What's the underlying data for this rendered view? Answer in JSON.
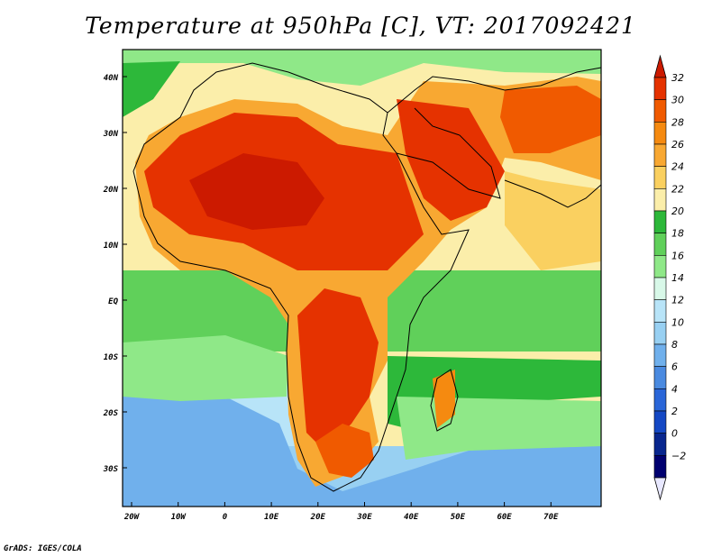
{
  "map": {
    "title": "Temperature at 950hPa [C], VT: 2017092421",
    "credit": "GrADS: IGES/COLA",
    "lat_labels": [
      "40N",
      "30N",
      "20N",
      "10N",
      "EQ",
      "10S",
      "20S",
      "30S"
    ],
    "lon_labels": [
      "20W",
      "10W",
      "0",
      "10E",
      "20E",
      "30E",
      "40E",
      "50E",
      "60E",
      "70E"
    ],
    "extent": {
      "lon_min": -22,
      "lon_max": 80,
      "lat_min": -37,
      "lat_max": 46
    }
  },
  "colorbar": {
    "labels": [
      "32",
      "30",
      "28",
      "26",
      "24",
      "22",
      "20",
      "18",
      "16",
      "14",
      "12",
      "10",
      "8",
      "6",
      "4",
      "2",
      "0",
      "−2"
    ],
    "colors": [
      "#cc1a00",
      "#e53200",
      "#f05a00",
      "#f58a10",
      "#f8a832",
      "#fad060",
      "#fbeeaa",
      "#2db83a",
      "#60d05a",
      "#8fe888",
      "#d8f8e8",
      "#b8e4f8",
      "#98d0f2",
      "#70b0ec",
      "#4a8ae0",
      "#2a66d8",
      "#1448c4",
      "#08268e",
      "#000070",
      "#e8e8ff"
    ]
  }
}
